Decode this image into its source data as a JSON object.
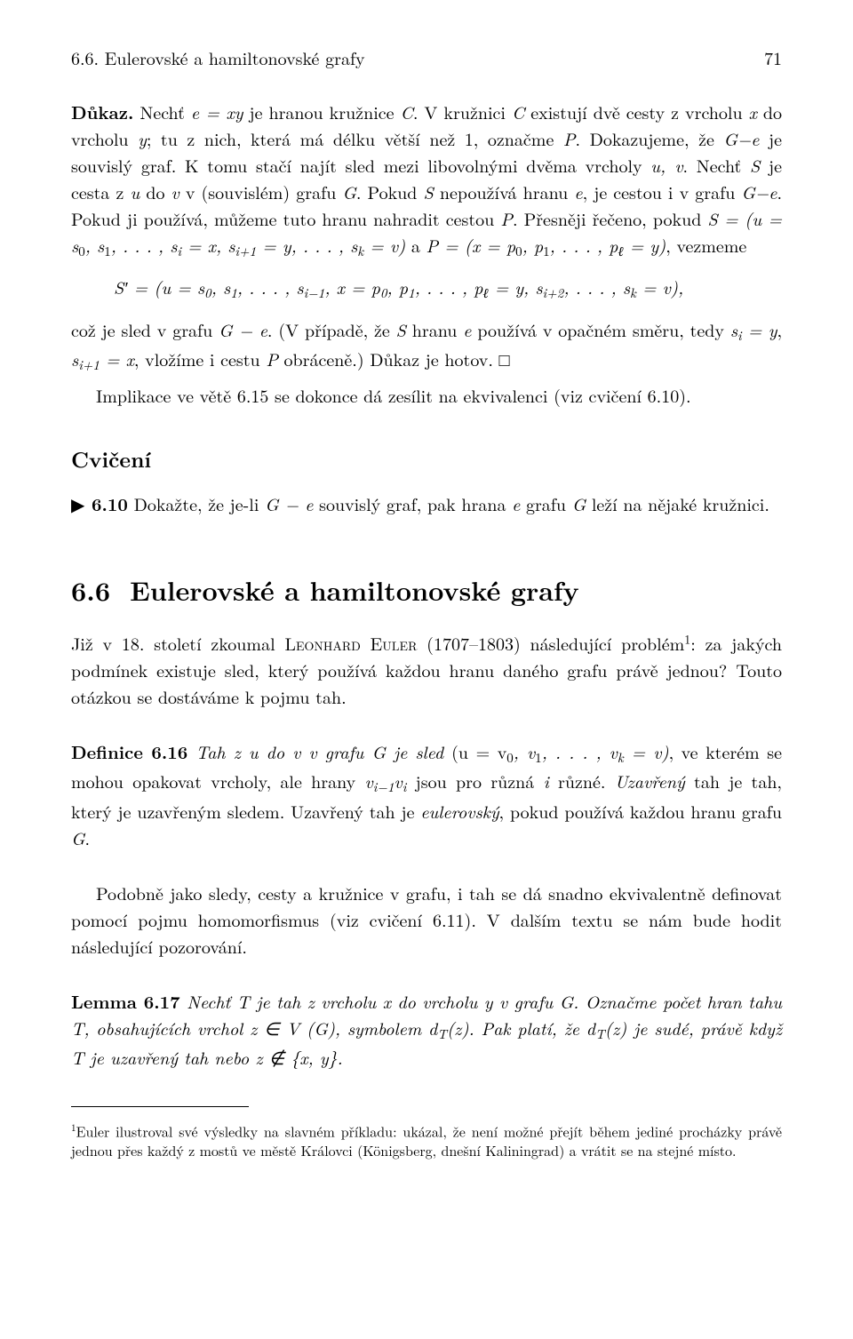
{
  "header": {
    "section_ref": "6.6. Eulerovské a hamiltonovské grafy",
    "page_number": "71"
  },
  "proof": {
    "label": "Důkaz.",
    "text1a": " Nechť ",
    "eq1": "e = xy",
    "text1b": " je hranou kružnice ",
    "C1": "C",
    "text1c": ". V kružnici ",
    "C2": "C",
    "text1d": " existují dvě cesty z vrcholu ",
    "x1": "x",
    "text1e": " do vrcholu ",
    "y1": "y",
    "text1f": "; tu z nich, která má délku větší než 1, označme ",
    "P1": "P",
    "text1g": ". Dokazujeme, že ",
    "eq2": "G−e",
    "text1h": " je souvislý graf. K tomu stačí najít sled mezi libovolnými dvěma vrcholy ",
    "uv": "u, v",
    "text1i": ". Nechť ",
    "S1": "S",
    "text1j": " je cesta z ",
    "u1": "u",
    "text1k": " do ",
    "v1": "v",
    "text1l": " v (souvislém) grafu ",
    "G1": "G",
    "text1m": ". Pokud ",
    "S2": "S",
    "text1n": " nepoužívá hranu ",
    "e1": "e",
    "text1o": ", je cestou i v grafu ",
    "eq3": "G−e",
    "text1p": ". Pokud ji používá, můžeme tuto hranu nahradit cestou ",
    "P2": "P",
    "text1q": ". Přesněji řečeno, pokud ",
    "eq4a": "S = (u = s",
    "sub0a": "0",
    "eq4b": ", s",
    "sub1a": "1",
    "eq4c": ", . . . , s",
    "subi": "i",
    "eq4d": " = x, s",
    "subi1": "i+1",
    "eq4e": " = y, . . . , s",
    "subk": "k",
    "eq4f": " = v)",
    "text1r": " a ",
    "eq5a": "P = (x = p",
    "sub0b": "0",
    "eq5b": ", p",
    "sub1b": "1",
    "eq5c": ", . . . , p",
    "subl": "ℓ",
    "eq5d": " = y)",
    "text1s": ", vezmeme",
    "display_a": "S′ = (u = s",
    "d_sub0": "0",
    "display_b": ", s",
    "d_sub1": "1",
    "display_c": ", . . . , s",
    "d_subim1": "i−1",
    "display_d": ", x = p",
    "d_sub0p": "0",
    "display_e": ", p",
    "d_sub1p": "1",
    "display_f": ", . . . , p",
    "d_subl": "ℓ",
    "display_g": " = y, s",
    "d_subi2": "i+2",
    "display_h": ", . . . , s",
    "d_subk": "k",
    "display_i": " = v),",
    "text2a": "což je sled v grafu ",
    "eq6": "G − e",
    "text2b": ". (V případě, že ",
    "S3": "S",
    "text2c": " hranu ",
    "e2": "e",
    "text2d": " používá v opačném směru, tedy ",
    "eq7": "s",
    "sub_i2": "i",
    "eq7b": " = y",
    "text2e": ", ",
    "eq8": "s",
    "sub_i1b": "i+1",
    "eq8b": " = x",
    "text2f": ", vložíme i cestu ",
    "P3": "P",
    "text2g": " obráceně.) Důkaz je hotov.   □",
    "text3a": "Implikace ve větě 6.15 se dokonce dá zesílit na ekvivalenci (viz cvičení 6.10)."
  },
  "cviceni": {
    "heading": "Cvičení",
    "marker": "▶",
    "label": " 6.10",
    "text_a": " Dokažte, že je-li ",
    "eq": "G − e",
    "text_b": " souvislý graf, pak hrana ",
    "e": "e",
    "text_c": " grafu ",
    "G": "G",
    "text_d": " leží na nějaké kružnici."
  },
  "section": {
    "number": "6.6",
    "title": "Eulerovské a hamiltonovské grafy",
    "intro_a": "Již v 18. století zkoumal ",
    "euler": "Leonhard Euler",
    "intro_b": " (1707–1803) následující problém",
    "fnmark": "1",
    "intro_c": ": za jakých podmínek existuje sled, který používá každou hranu daného grafu právě jednou? Touto otázkou se dostáváme k pojmu tah."
  },
  "definice": {
    "label": "Definice 6.16",
    "text_a": " Tah z ",
    "u": "u",
    "text_b": " do ",
    "v": "v",
    "text_c": " v grafu ",
    "G": "G",
    "text_d": " je sled ",
    "eq_a": "(u = v",
    "sub0": "0",
    "eq_b": ", v",
    "sub1": "1",
    "eq_c": ", . . . , v",
    "subk": "k",
    "eq_d": " = v)",
    "text_e": ", ve kterém se mohou opakovat vrcholy, ale hrany ",
    "eq2a": "v",
    "sub_im1": "i−1",
    "eq2b": "v",
    "sub_i": "i",
    "text_f": " jsou pro různá ",
    "i": "i",
    "text_g": " různé. ",
    "uzavreny": "Uzavřený",
    "text_h": " tah je tah, který je uzavřeným sledem. Uzavřený tah je ",
    "eulerovsky": "eulerovský",
    "text_i": ", pokud používá každou hranu grafu ",
    "G2": "G",
    "text_j": "."
  },
  "para_homomorphism": {
    "text": "Podobně jako sledy, cesty a kružnice v grafu, i tah se dá snadno ekvivalentně definovat pomocí pojmu homomorfismus (viz cvičení 6.11). V dalším textu se nám bude hodit následující pozorování."
  },
  "lemma": {
    "label": "Lemma 6.17",
    "text_a": " Nechť ",
    "T": "T",
    "text_b": " je tah z vrcholu ",
    "x": "x",
    "text_c": " do vrcholu ",
    "y": "y",
    "text_d": " v grafu ",
    "G": "G",
    "text_e": ". Označme počet hran tahu ",
    "T2": "T",
    "text_f": ", obsahujících vrchol ",
    "eq_z": "z ∈ V (G)",
    "text_g": ", symbolem ",
    "eq_dt": "d",
    "subT": "T",
    "eq_dtz": "(z)",
    "text_h": ". Pak platí, že ",
    "eq_dt2": "d",
    "subT2": "T",
    "eq_dtz2": "(z)",
    "text_i": " je sudé, právě když ",
    "T3": "T",
    "text_j": " je uzavřený tah nebo ",
    "eq_notin": "z ∉ {x, y}",
    "text_k": "."
  },
  "footnote": {
    "mark": "1",
    "text": "Euler ilustroval své výsledky na slavném příkladu: ukázal, že není možné přejít během jediné procházky právě jednou přes každý z mostů ve městě Královci (Königsberg, dnešní Kaliningrad) a vrátit se na stejné místo."
  }
}
